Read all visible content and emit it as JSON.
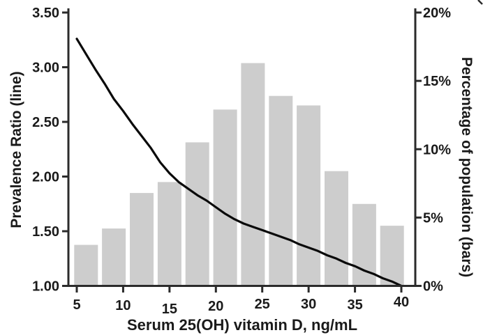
{
  "colors": {
    "bar_fill": "#cdcdcd",
    "line_stroke": "#0a0a0a",
    "axis_stroke": "#2b2b2b",
    "text": "#1a1a1a",
    "background": "#ffffff"
  },
  "chart_data": {
    "type": "combo: histogram bars + line",
    "title": "",
    "xlabel": "Serum 25(OH) vitamin D, ng/mL",
    "ylabel_left": "Prevalence Ratio (line)",
    "ylabel_right": "Percentage of population (bars)",
    "legend": "none",
    "grid": "off",
    "x_axis": {
      "min": 4.5,
      "max": 40.5,
      "tick_values": [
        5,
        10,
        15,
        20,
        25,
        30,
        35,
        40
      ],
      "tick_labels": [
        "5",
        "10",
        "15",
        "20",
        "25",
        "30",
        "35",
        "40"
      ]
    },
    "y_left": {
      "axis_for": "line",
      "min": 1.0,
      "max": 3.5,
      "tick_values": [
        3.5,
        3.0,
        2.5,
        2.0,
        1.5,
        1.0
      ],
      "tick_labels": [
        "3.50",
        "3.00",
        "2.50",
        "2.00",
        "1.50",
        "1.00"
      ]
    },
    "y_right": {
      "axis_for": "bars",
      "min": 0,
      "max": 20,
      "tick_values": [
        20,
        15,
        10,
        5,
        0
      ],
      "tick_labels": [
        "20%",
        "15%",
        "10%",
        "5%",
        "0%"
      ]
    },
    "bars": {
      "name": "Percentage of population",
      "axis": "right",
      "bin_width_ng_ml": 3,
      "centers_ng_ml": [
        6,
        9,
        12,
        15,
        18,
        21,
        24,
        27,
        30,
        33,
        36,
        39
      ],
      "values_percent": [
        3.0,
        4.2,
        6.8,
        7.6,
        10.5,
        12.9,
        16.3,
        13.9,
        13.2,
        8.4,
        6.0,
        4.4
      ]
    },
    "line": {
      "name": "Prevalence Ratio",
      "axis": "left",
      "points_x_pr": [
        [
          5,
          3.26
        ],
        [
          6,
          3.12
        ],
        [
          7,
          2.98
        ],
        [
          8,
          2.85
        ],
        [
          9,
          2.71
        ],
        [
          10,
          2.6
        ],
        [
          11,
          2.48
        ],
        [
          12,
          2.37
        ],
        [
          13,
          2.26
        ],
        [
          14,
          2.13
        ],
        [
          15,
          2.03
        ],
        [
          16,
          1.95
        ],
        [
          17,
          1.89
        ],
        [
          18,
          1.83
        ],
        [
          19,
          1.78
        ],
        [
          20,
          1.72
        ],
        [
          21,
          1.66
        ],
        [
          22,
          1.61
        ],
        [
          23,
          1.57
        ],
        [
          24,
          1.54
        ],
        [
          25,
          1.51
        ],
        [
          26,
          1.48
        ],
        [
          27,
          1.45
        ],
        [
          28,
          1.42
        ],
        [
          29,
          1.38
        ],
        [
          30,
          1.35
        ],
        [
          31,
          1.32
        ],
        [
          32,
          1.28
        ],
        [
          33,
          1.25
        ],
        [
          34,
          1.21
        ],
        [
          35,
          1.18
        ],
        [
          36,
          1.14
        ],
        [
          37,
          1.11
        ],
        [
          38,
          1.07
        ],
        [
          39,
          1.04
        ],
        [
          40,
          1.0
        ]
      ]
    }
  }
}
